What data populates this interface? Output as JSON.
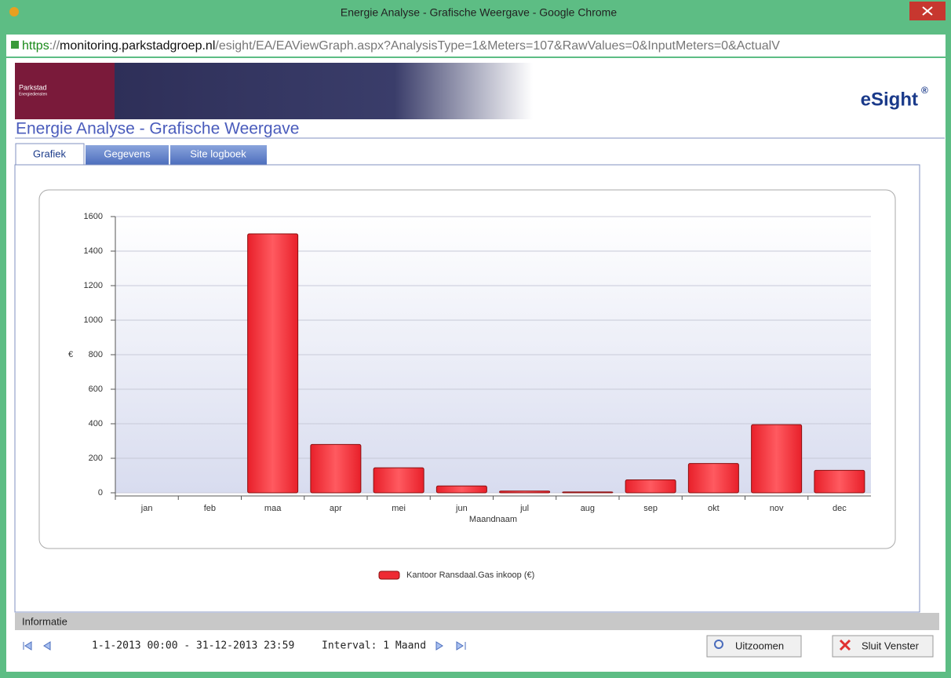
{
  "window": {
    "title": "Energie Analyse - Grafische Weergave - Google Chrome",
    "url_parts": [
      "https",
      "://",
      "monitoring.parkstadgroep.nl",
      "/esight/EA/EAViewGraph.aspx?AnalysisType=1&Meters=107&RawValues=0&InputMeters=0&ActualV"
    ]
  },
  "banner": {
    "logo_name": "Parkstad",
    "logo_sub": "Energiediensten",
    "brand": "eSight",
    "brand_mark": "®"
  },
  "page": {
    "heading": "Energie Analyse - Grafische Weergave",
    "tabs": [
      "Grafiek",
      "Gegevens",
      "Site logboek"
    ]
  },
  "chart_data": {
    "type": "bar",
    "y_label": "€",
    "x_label": "Maandnaam",
    "categories": [
      "jan",
      "feb",
      "maa",
      "apr",
      "mei",
      "jun",
      "jul",
      "aug",
      "sep",
      "okt",
      "nov",
      "dec"
    ],
    "series": [
      {
        "name": "Kantoor Ransdaal.Gas inkoop (€)",
        "color": "#ee2b33",
        "values": [
          0,
          0,
          1500,
          280,
          145,
          40,
          10,
          5,
          75,
          170,
          395,
          130
        ]
      }
    ],
    "ylim": [
      0,
      1600
    ],
    "yticks": [
      0,
      200,
      400,
      600,
      800,
      1000,
      1200,
      1400,
      1600
    ],
    "grid": true,
    "legend": "bottom"
  },
  "info": {
    "header": "Informatie",
    "range": "1-1-2013 00:00 - 31-12-2013 23:59",
    "interval": "Interval: 1 Maand",
    "buttons": [
      "Uitzoomen",
      "Sluit Venster"
    ]
  }
}
